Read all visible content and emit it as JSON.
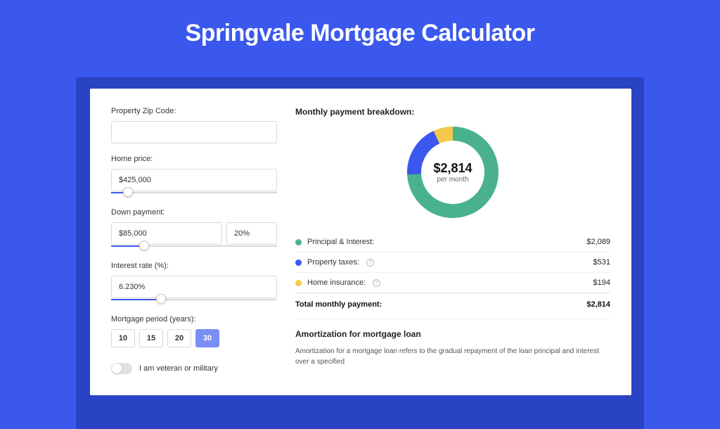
{
  "page": {
    "title": "Springvale Mortgage Calculator",
    "background_color": "#3b58ee"
  },
  "form": {
    "zip": {
      "label": "Property Zip Code:",
      "value": ""
    },
    "home_price": {
      "label": "Home price:",
      "value": "$425,000",
      "slider_percent": 10
    },
    "down_payment": {
      "label": "Down payment:",
      "amount": "$85,000",
      "percent": "20%",
      "slider_percent": 20
    },
    "interest_rate": {
      "label": "Interest rate (%):",
      "value": "6.230%",
      "slider_percent": 30
    },
    "period": {
      "label": "Mortgage period (years):",
      "options": [
        "10",
        "15",
        "20",
        "30"
      ],
      "selected": "30"
    },
    "veteran": {
      "label": "I am veteran or military",
      "checked": false
    }
  },
  "breakdown": {
    "title": "Monthly payment breakdown:",
    "center_amount": "$2,814",
    "center_sub": "per month",
    "donut": {
      "segments": [
        {
          "key": "pi",
          "color": "#49b28c",
          "fraction": 0.742
        },
        {
          "key": "tax",
          "color": "#3b58ee",
          "fraction": 0.189
        },
        {
          "key": "ins",
          "color": "#f2c94c",
          "fraction": 0.069
        }
      ],
      "stroke_width": 20,
      "radius": 55
    },
    "items": [
      {
        "key": "pi",
        "color": "#49b28c",
        "label": "Principal & Interest:",
        "value": "$2,089",
        "info": false
      },
      {
        "key": "tax",
        "color": "#3b58ee",
        "label": "Property taxes:",
        "value": "$531",
        "info": true
      },
      {
        "key": "ins",
        "color": "#f2c94c",
        "label": "Home insurance:",
        "value": "$194",
        "info": true
      }
    ],
    "total": {
      "label": "Total monthly payment:",
      "value": "$2,814"
    }
  },
  "amortization": {
    "title": "Amortization for mortgage loan",
    "text": "Amortization for a mortgage loan refers to the gradual repayment of the loan principal and interest over a specified"
  }
}
